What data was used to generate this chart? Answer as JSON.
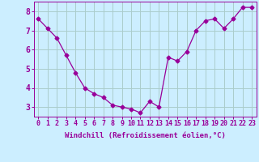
{
  "x": [
    0,
    1,
    2,
    3,
    4,
    5,
    6,
    7,
    8,
    9,
    10,
    11,
    12,
    13,
    14,
    15,
    16,
    17,
    18,
    19,
    20,
    21,
    22,
    23
  ],
  "y": [
    7.6,
    7.1,
    6.6,
    5.7,
    4.8,
    4.0,
    3.7,
    3.5,
    3.1,
    3.0,
    2.9,
    2.7,
    3.3,
    3.0,
    5.6,
    5.4,
    5.9,
    7.0,
    7.5,
    7.6,
    7.1,
    7.6,
    8.2,
    8.2
  ],
  "line_color": "#990099",
  "marker": "D",
  "markersize": 2.5,
  "linewidth": 0.9,
  "background_color": "#cceeff",
  "grid_color": "#aacccc",
  "xlabel": "Windchill (Refroidissement éolien,°C)",
  "xlim": [
    -0.5,
    23.5
  ],
  "ylim": [
    2.5,
    8.5
  ],
  "xtick_labels": [
    "0",
    "1",
    "2",
    "3",
    "4",
    "5",
    "6",
    "7",
    "8",
    "9",
    "10",
    "11",
    "12",
    "13",
    "14",
    "15",
    "16",
    "17",
    "18",
    "19",
    "20",
    "21",
    "22",
    "23"
  ],
  "ytick_values": [
    3,
    4,
    5,
    6,
    7,
    8
  ],
  "label_color": "#990099",
  "label_fontsize": 6.5,
  "tick_fontsize": 6.0
}
